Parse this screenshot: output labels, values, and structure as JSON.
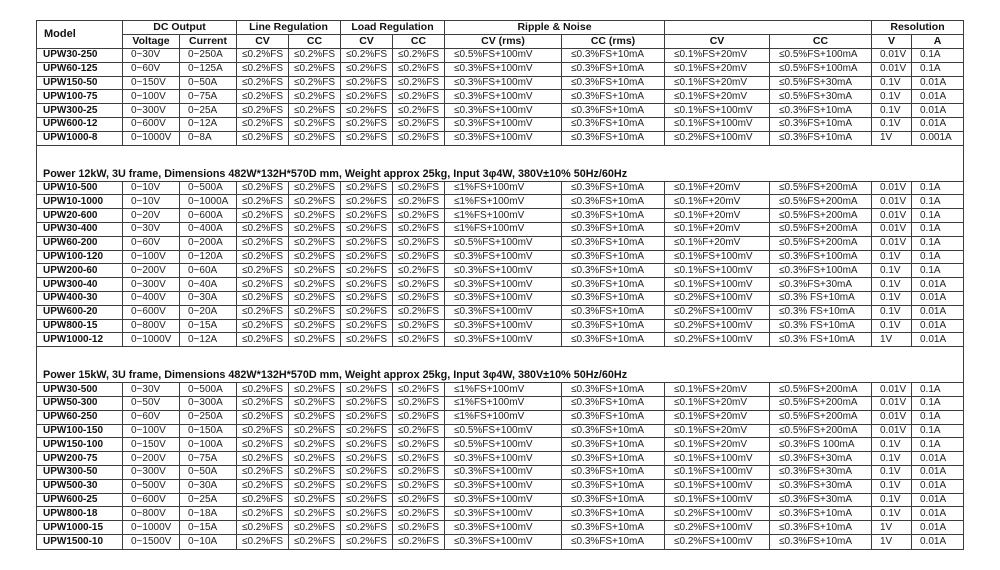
{
  "colors": {
    "border": "#3d3d3d",
    "text": "#242424",
    "background": "#ffffff"
  },
  "table": {
    "header": {
      "model": "Model",
      "groups": [
        {
          "label": "DC Output"
        },
        {
          "label": "Line Regulation"
        },
        {
          "label": "Load Regulation"
        },
        {
          "label": "Ripple & Noise"
        },
        {
          "label": ""
        },
        {
          "label": "Resolution"
        }
      ],
      "sub": [
        "Voltage",
        "Current",
        "CV",
        "CC",
        "CV",
        "CC",
        "CV (rms)",
        "CC (rms)",
        "CV",
        "CC",
        "V",
        "A"
      ]
    },
    "sections": [
      {
        "title": "",
        "rows": [
          [
            "UPW30-250",
            "0~30V",
            "0~250A",
            "≤0.2%FS",
            "≤0.2%FS",
            "≤0.2%FS",
            "≤0.2%FS",
            "≤0.5%FS+100mV",
            "≤0.3%FS+10mA",
            "≤0.1%FS+20mV",
            "≤0.5%FS+100mA",
            "0.01V",
            "0.1A"
          ],
          [
            "UPW60-125",
            "0~60V",
            "0~125A",
            "≤0.2%FS",
            "≤0.2%FS",
            "≤0.2%FS",
            "≤0.2%FS",
            "≤0.3%FS+100mV",
            "≤0.3%FS+10mA",
            "≤0.1%FS+20mV",
            "≤0.5%FS+100mA",
            "0.01V",
            "0.1A"
          ],
          [
            "UPW150-50",
            "0~150V",
            "0~50A",
            "≤0.2%FS",
            "≤0.2%FS",
            "≤0.2%FS",
            "≤0.2%FS",
            "≤0.3%FS+100mV",
            "≤0.3%FS+10mA",
            "≤0.1%FS+20mV",
            "≤0.5%FS+30mA",
            "0.1V",
            "0.01A"
          ],
          [
            "UPW100-75",
            "0~100V",
            "0~75A",
            "≤0.2%FS",
            "≤0.2%FS",
            "≤0.2%FS",
            "≤0.2%FS",
            "≤0.3%FS+100mV",
            "≤0.3%FS+10mA",
            "≤0.1%FS+20mV",
            "≤0.5%FS+30mA",
            "0.1V",
            "0.01A"
          ],
          [
            "UPW300-25",
            "0~300V",
            "0~25A",
            "≤0.2%FS",
            "≤0.2%FS",
            "≤0.2%FS",
            "≤0.2%FS",
            "≤0.3%FS+100mV",
            "≤0.3%FS+10mA",
            "≤0.1%FS+100mV",
            "≤0.3%FS+10mA",
            "0.1V",
            "0.01A"
          ],
          [
            "UPW600-12",
            "0~600V",
            "0~12A",
            "≤0.2%FS",
            "≤0.2%FS",
            "≤0.2%FS",
            "≤0.2%FS",
            "≤0.3%FS+100mV",
            "≤0.3%FS+10mA",
            "≤0.1%FS+100mV",
            "≤0.3%FS+10mA",
            "0.1V",
            "0.01A"
          ],
          [
            "UPW1000-8",
            "0~1000V",
            "0~8A",
            "≤0.2%FS",
            "≤0.2%FS",
            "≤0.2%FS",
            "≤0.2%FS",
            "≤0.3%FS+100mV",
            "≤0.3%FS+10mA",
            "≤0.2%FS+100mV",
            "≤0.3%FS+10mA",
            "1V",
            "0.001A"
          ]
        ]
      },
      {
        "title": "Power 12kW, 3U frame, Dimensions 482W*132H*570D mm, Weight approx 25kg, Input 3φ4W, 380V±10% 50Hz/60Hz",
        "rows": [
          [
            "UPW10-500",
            "0~10V",
            "0~500A",
            "≤0.2%FS",
            "≤0.2%FS",
            "≤0.2%FS",
            "≤0.2%FS",
            "≤1%FS+100mV",
            "≤0.3%FS+10mA",
            "≤0.1%F+20mV",
            "≤0.5%FS+200mA",
            "0.01V",
            "0.1A"
          ],
          [
            "UPW10-1000",
            "0~10V",
            "0~1000A",
            "≤0.2%FS",
            "≤0.2%FS",
            "≤0.2%FS",
            "≤0.2%FS",
            "≤1%FS+100mV",
            "≤0.3%FS+10mA",
            "≤0.1%F+20mV",
            "≤0.5%FS+200mA",
            "0.01V",
            "0.1A"
          ],
          [
            "UPW20-600",
            "0~20V",
            "0~600A",
            "≤0.2%FS",
            "≤0.2%FS",
            "≤0.2%FS",
            "≤0.2%FS",
            "≤1%FS+100mV",
            "≤0.3%FS+10mA",
            "≤0.1%F+20mV",
            "≤0.5%FS+200mA",
            "0.01V",
            "0.1A"
          ],
          [
            "UPW30-400",
            "0~30V",
            "0~400A",
            "≤0.2%FS",
            "≤0.2%FS",
            "≤0.2%FS",
            "≤0.2%FS",
            "≤1%FS+100mV",
            "≤0.3%FS+10mA",
            "≤0.1%F+20mV",
            "≤0.5%FS+200mA",
            "0.01V",
            "0.1A"
          ],
          [
            "UPW60-200",
            "0~60V",
            "0~200A",
            "≤0.2%FS",
            "≤0.2%FS",
            "≤0.2%FS",
            "≤0.2%FS",
            "≤0.5%FS+100mV",
            "≤0.3%FS+10mA",
            "≤0.1%F+20mV",
            "≤0.5%FS+200mA",
            "0.01V",
            "0.1A"
          ],
          [
            "UPW100-120",
            "0~100V",
            "0~120A",
            "≤0.2%FS",
            "≤0.2%FS",
            "≤0.2%FS",
            "≤0.2%FS",
            "≤0.3%FS+100mV",
            "≤0.3%FS+10mA",
            "≤0.1%FS+100mV",
            "≤0.3%FS+100mA",
            "0.1V",
            "0.1A"
          ],
          [
            "UPW200-60",
            "0~200V",
            "0~60A",
            "≤0.2%FS",
            "≤0.2%FS",
            "≤0.2%FS",
            "≤0.2%FS",
            "≤0.3%FS+100mV",
            "≤0.3%FS+10mA",
            "≤0.1%FS+100mV",
            "≤0.3%FS+100mA",
            "0.1V",
            "0.1A"
          ],
          [
            "UPW300-40",
            "0~300V",
            "0~40A",
            "≤0.2%FS",
            "≤0.2%FS",
            "≤0.2%FS",
            "≤0.2%FS",
            "≤0.3%FS+100mV",
            "≤0.3%FS+10mA",
            "≤0.1%FS+100mV",
            "≤0.3%FS+30mA",
            "0.1V",
            "0.01A"
          ],
          [
            "UPW400-30",
            "0~400V",
            "0~30A",
            "≤0.2%FS",
            "≤0.2%FS",
            "≤0.2%FS",
            "≤0.2%FS",
            "≤0.3%FS+100mV",
            "≤0.3%FS+10mA",
            "≤0.2%FS+100mV",
            "≤0.3% FS+10mA",
            "0.1V",
            "0.01A"
          ],
          [
            "UPW600-20",
            "0~600V",
            "0~20A",
            "≤0.2%FS",
            "≤0.2%FS",
            "≤0.2%FS",
            "≤0.2%FS",
            "≤0.3%FS+100mV",
            "≤0.3%FS+10mA",
            "≤0.2%FS+100mV",
            "≤0.3% FS+10mA",
            "0.1V",
            "0.01A"
          ],
          [
            "UPW800-15",
            "0~800V",
            "0~15A",
            "≤0.2%FS",
            "≤0.2%FS",
            "≤0.2%FS",
            "≤0.2%FS",
            "≤0.3%FS+100mV",
            "≤0.3%FS+10mA",
            "≤0.2%FS+100mV",
            "≤0.3% FS+10mA",
            "0.1V",
            "0.01A"
          ],
          [
            "UPW1000-12",
            "0~1000V",
            "0~12A",
            "≤0.2%FS",
            "≤0.2%FS",
            "≤0.2%FS",
            "≤0.2%FS",
            "≤0.3%FS+100mV",
            "≤0.3%FS+10mA",
            "≤0.2%FS+100mV",
            "≤0.3% FS+10mA",
            "1V",
            "0.01A"
          ]
        ]
      },
      {
        "title": "Power 15kW, 3U frame, Dimensions 482W*132H*570D mm, Weight approx 25kg, Input 3φ4W, 380V±10% 50Hz/60Hz",
        "rows": [
          [
            "UPW30-500",
            "0~30V",
            "0~500A",
            "≤0.2%FS",
            "≤0.2%FS",
            "≤0.2%FS",
            "≤0.2%FS",
            "≤1%FS+100mV",
            "≤0.3%FS+10mA",
            "≤0.1%FS+20mV",
            "≤0.5%FS+200mA",
            "0.01V",
            "0.1A"
          ],
          [
            "UPW50-300",
            "0~50V",
            "0~300A",
            "≤0.2%FS",
            "≤0.2%FS",
            "≤0.2%FS",
            "≤0.2%FS",
            "≤1%FS+100mV",
            "≤0.3%FS+10mA",
            "≤0.1%FS+20mV",
            "≤0.5%FS+200mA",
            "0.01V",
            "0.1A"
          ],
          [
            "UPW60-250",
            "0~60V",
            "0~250A",
            "≤0.2%FS",
            "≤0.2%FS",
            "≤0.2%FS",
            "≤0.2%FS",
            "≤1%FS+100mV",
            "≤0.3%FS+10mA",
            "≤0.1%FS+20mV",
            "≤0.5%FS+200mA",
            "0.01V",
            "0.1A"
          ],
          [
            "UPW100-150",
            "0~100V",
            "0~150A",
            "≤0.2%FS",
            "≤0.2%FS",
            "≤0.2%FS",
            "≤0.2%FS",
            "≤0.5%FS+100mV",
            "≤0.3%FS+10mA",
            "≤0.1%FS+20mV",
            "≤0.5%FS+200mA",
            "0.01V",
            "0.1A"
          ],
          [
            "UPW150-100",
            "0~150V",
            "0~100A",
            "≤0.2%FS",
            "≤0.2%FS",
            "≤0.2%FS",
            "≤0.2%FS",
            "≤0.5%FS+100mV",
            "≤0.3%FS+10mA",
            "≤0.1%FS+20mV",
            "≤0.3%FS 100mA",
            "0.1V",
            "0.1A"
          ],
          [
            "UPW200-75",
            "0~200V",
            "0~75A",
            "≤0.2%FS",
            "≤0.2%FS",
            "≤0.2%FS",
            "≤0.2%FS",
            "≤0.3%FS+100mV",
            "≤0.3%FS+10mA",
            "≤0.1%FS+100mV",
            "≤0.3%FS+30mA",
            "0.1V",
            "0.01A"
          ],
          [
            "UPW300-50",
            "0~300V",
            "0~50A",
            "≤0.2%FS",
            "≤0.2%FS",
            "≤0.2%FS",
            "≤0.2%FS",
            "≤0.3%FS+100mV",
            "≤0.3%FS+10mA",
            "≤0.1%FS+100mV",
            "≤0.3%FS+30mA",
            "0.1V",
            "0.01A"
          ],
          [
            "UPW500-30",
            "0~500V",
            "0~30A",
            "≤0.2%FS",
            "≤0.2%FS",
            "≤0.2%FS",
            "≤0.2%FS",
            "≤0.3%FS+100mV",
            "≤0.3%FS+10mA",
            "≤0.1%FS+100mV",
            "≤0.3%FS+30mA",
            "0.1V",
            "0.01A"
          ],
          [
            "UPW600-25",
            "0~600V",
            "0~25A",
            "≤0.2%FS",
            "≤0.2%FS",
            "≤0.2%FS",
            "≤0.2%FS",
            "≤0.3%FS+100mV",
            "≤0.3%FS+10mA",
            "≤0.1%FS+100mV",
            "≤0.3%FS+30mA",
            "0.1V",
            "0.01A"
          ],
          [
            "UPW800-18",
            "0~800V",
            "0~18A",
            "≤0.2%FS",
            "≤0.2%FS",
            "≤0.2%FS",
            "≤0.2%FS",
            "≤0.3%FS+100mV",
            "≤0.3%FS+10mA",
            "≤0.2%FS+100mV",
            "≤0.3%FS+10mA",
            "0.1V",
            "0.01A"
          ],
          [
            "UPW1000-15",
            "0~1000V",
            "0~15A",
            "≤0.2%FS",
            "≤0.2%FS",
            "≤0.2%FS",
            "≤0.2%FS",
            "≤0.3%FS+100mV",
            "≤0.3%FS+10mA",
            "≤0.2%FS+100mV",
            "≤0.3%FS+10mA",
            "1V",
            "0.01A"
          ],
          [
            "UPW1500-10",
            "0~1500V",
            "0~10A",
            "≤0.2%FS",
            "≤0.2%FS",
            "≤0.2%FS",
            "≤0.2%FS",
            "≤0.3%FS+100mV",
            "≤0.3%FS+10mA",
            "≤0.2%FS+100mV",
            "≤0.3%FS+10mA",
            "1V",
            "0.01A"
          ]
        ]
      }
    ]
  }
}
